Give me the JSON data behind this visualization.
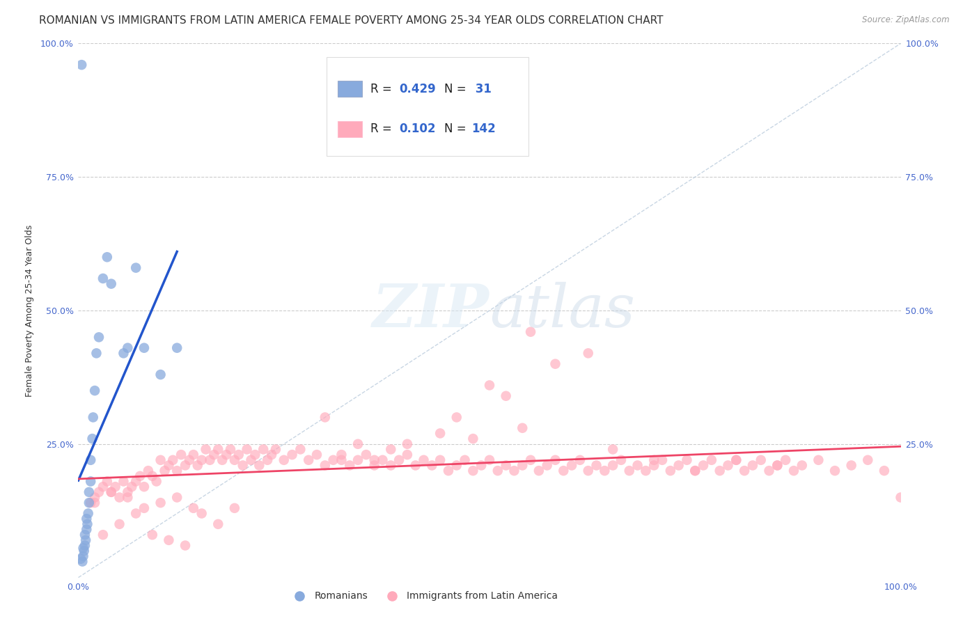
{
  "title": "ROMANIAN VS IMMIGRANTS FROM LATIN AMERICA FEMALE POVERTY AMONG 25-34 YEAR OLDS CORRELATION CHART",
  "source": "Source: ZipAtlas.com",
  "ylabel": "Female Poverty Among 25-34 Year Olds",
  "background_color": "#ffffff",
  "grid_color": "#cccccc",
  "romanian_color": "#88aadd",
  "latin_color": "#ffaabb",
  "romanian_line_color": "#2255cc",
  "latin_line_color": "#ee4466",
  "diagonal_color": "#bbccdd",
  "title_fontsize": 11,
  "axis_label_fontsize": 9,
  "tick_fontsize": 9,
  "legend_fontsize": 12,
  "romanian_x": [
    0.5,
    0.6,
    0.7,
    0.8,
    0.8,
    0.9,
    1.0,
    1.0,
    1.1,
    1.2,
    1.3,
    1.3,
    1.5,
    1.5,
    1.7,
    1.8,
    2.0,
    2.2,
    2.5,
    3.0,
    3.5,
    4.0,
    5.5,
    6.0,
    7.0,
    8.0,
    10.0,
    12.0,
    0.4,
    0.3,
    0.6
  ],
  "romanian_y": [
    3.0,
    4.0,
    5.0,
    6.0,
    8.0,
    7.0,
    9.0,
    11.0,
    10.0,
    12.0,
    14.0,
    16.0,
    18.0,
    22.0,
    26.0,
    30.0,
    35.0,
    42.0,
    45.0,
    56.0,
    60.0,
    55.0,
    42.0,
    43.0,
    58.0,
    43.0,
    38.0,
    43.0,
    96.0,
    3.5,
    5.5
  ],
  "latin_x": [
    1.5,
    2.0,
    2.5,
    3.0,
    3.5,
    4.0,
    4.5,
    5.0,
    5.5,
    6.0,
    6.5,
    7.0,
    7.5,
    8.0,
    8.5,
    9.0,
    9.5,
    10.0,
    10.5,
    11.0,
    11.5,
    12.0,
    12.5,
    13.0,
    13.5,
    14.0,
    14.5,
    15.0,
    15.5,
    16.0,
    16.5,
    17.0,
    17.5,
    18.0,
    18.5,
    19.0,
    19.5,
    20.0,
    20.5,
    21.0,
    21.5,
    22.0,
    22.5,
    23.0,
    23.5,
    24.0,
    25.0,
    26.0,
    27.0,
    28.0,
    29.0,
    30.0,
    31.0,
    32.0,
    33.0,
    34.0,
    35.0,
    36.0,
    37.0,
    38.0,
    39.0,
    40.0,
    41.0,
    42.0,
    43.0,
    44.0,
    45.0,
    46.0,
    47.0,
    48.0,
    49.0,
    50.0,
    51.0,
    52.0,
    53.0,
    54.0,
    55.0,
    56.0,
    57.0,
    58.0,
    59.0,
    60.0,
    61.0,
    62.0,
    63.0,
    64.0,
    65.0,
    66.0,
    67.0,
    68.0,
    69.0,
    70.0,
    71.0,
    72.0,
    73.0,
    74.0,
    75.0,
    76.0,
    77.0,
    78.0,
    79.0,
    80.0,
    81.0,
    82.0,
    83.0,
    84.0,
    85.0,
    86.0,
    87.0,
    88.0,
    55.0,
    58.0,
    62.0,
    3.0,
    5.0,
    7.0,
    9.0,
    11.0,
    13.0,
    15.0,
    17.0,
    19.0,
    50.0,
    52.0,
    54.0,
    48.0,
    46.0,
    44.0,
    30.0,
    32.0,
    34.0,
    36.0,
    38.0,
    40.0,
    65.0,
    70.0,
    75.0,
    80.0,
    85.0,
    90.0,
    92.0,
    94.0,
    96.0,
    98.0,
    100.0,
    2.0,
    4.0,
    6.0,
    8.0,
    10.0,
    12.0,
    14.0
  ],
  "latin_y": [
    14.0,
    15.0,
    16.0,
    17.0,
    18.0,
    16.0,
    17.0,
    15.0,
    18.0,
    16.0,
    17.0,
    18.0,
    19.0,
    17.0,
    20.0,
    19.0,
    18.0,
    22.0,
    20.0,
    21.0,
    22.0,
    20.0,
    23.0,
    21.0,
    22.0,
    23.0,
    21.0,
    22.0,
    24.0,
    22.0,
    23.0,
    24.0,
    22.0,
    23.0,
    24.0,
    22.0,
    23.0,
    21.0,
    24.0,
    22.0,
    23.0,
    21.0,
    24.0,
    22.0,
    23.0,
    24.0,
    22.0,
    23.0,
    24.0,
    22.0,
    23.0,
    21.0,
    22.0,
    23.0,
    21.0,
    22.0,
    23.0,
    21.0,
    22.0,
    21.0,
    22.0,
    23.0,
    21.0,
    22.0,
    21.0,
    22.0,
    20.0,
    21.0,
    22.0,
    20.0,
    21.0,
    22.0,
    20.0,
    21.0,
    20.0,
    21.0,
    22.0,
    20.0,
    21.0,
    22.0,
    20.0,
    21.0,
    22.0,
    20.0,
    21.0,
    20.0,
    21.0,
    22.0,
    20.0,
    21.0,
    20.0,
    21.0,
    22.0,
    20.0,
    21.0,
    22.0,
    20.0,
    21.0,
    22.0,
    20.0,
    21.0,
    22.0,
    20.0,
    21.0,
    22.0,
    20.0,
    21.0,
    22.0,
    20.0,
    21.0,
    46.0,
    40.0,
    42.0,
    8.0,
    10.0,
    12.0,
    8.0,
    7.0,
    6.0,
    12.0,
    10.0,
    13.0,
    36.0,
    34.0,
    28.0,
    26.0,
    30.0,
    27.0,
    30.0,
    22.0,
    25.0,
    22.0,
    24.0,
    25.0,
    24.0,
    22.0,
    20.0,
    22.0,
    21.0,
    22.0,
    20.0,
    21.0,
    22.0,
    20.0,
    15.0,
    14.0,
    16.0,
    15.0,
    13.0,
    14.0,
    15.0,
    13.0
  ]
}
